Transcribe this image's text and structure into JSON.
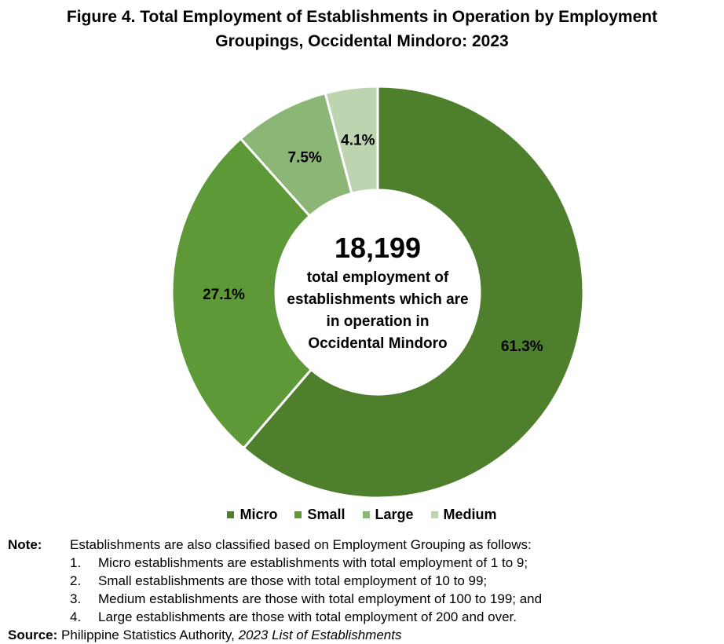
{
  "title_line1": "Figure 4. Total Employment of Establishments in Operation by Employment",
  "title_line2": "Groupings, Occidental Mindoro: 2023",
  "chart_data": {
    "type": "pie",
    "donut": true,
    "title": "Figure 4. Total Employment of Establishments in Operation by Employment Groupings, Occidental Mindoro: 2023",
    "slices": [
      {
        "label": "Micro",
        "value": 61.3,
        "display": "61.3%",
        "color": "#4e7f2c"
      },
      {
        "label": "Small",
        "value": 27.1,
        "display": "27.1%",
        "color": "#5d9936"
      },
      {
        "label": "Large",
        "value": 7.5,
        "display": "7.5%",
        "color": "#8bb676"
      },
      {
        "label": "Medium",
        "value": 4.1,
        "display": "4.1%",
        "color": "#bcd4b0"
      }
    ],
    "center_value": "18,199",
    "center_text": [
      "total employment of",
      "establishments which are",
      "in operation in",
      "Occidental Mindoro"
    ],
    "legend_position": "bottom"
  },
  "note": {
    "label": "Note:",
    "intro": "Establishments are also classified based on Employment Grouping as follows:",
    "items": [
      {
        "num": "1.",
        "text": "Micro establishments are establishments with total employment of 1 to 9;"
      },
      {
        "num": "2.",
        "text": "Small establishments are those with total employment of 10 to 99;"
      },
      {
        "num": "3.",
        "text": "Medium establishments are those with total employment of 100 to 199; and"
      },
      {
        "num": "4.",
        "text": "Large establishments are those with total employment of 200 and over."
      }
    ]
  },
  "source": {
    "label": "Source:",
    "text": "Philippine Statistics Authority,",
    "title": "2023 List of Establishments"
  }
}
